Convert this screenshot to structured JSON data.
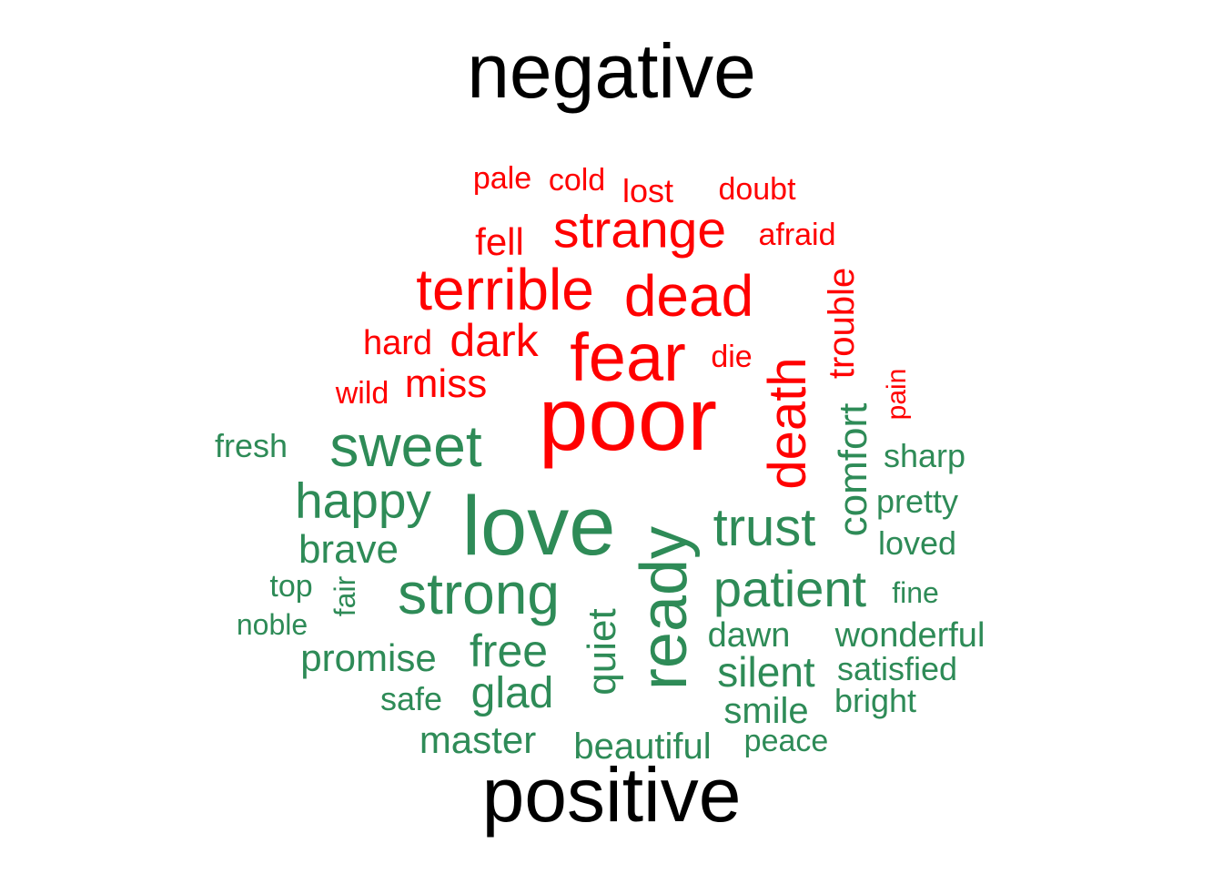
{
  "cloud": {
    "title_negative": "negative",
    "title_positive": "positive",
    "colors": {
      "negative": "#ff0000",
      "positive": "#2e8b57"
    },
    "negative_words": [
      {
        "text": "poor",
        "weight": 100
      },
      {
        "text": "fear",
        "weight": 70
      },
      {
        "text": "death",
        "weight": 62
      },
      {
        "text": "dead",
        "weight": 60
      },
      {
        "text": "terrible",
        "weight": 58
      },
      {
        "text": "strange",
        "weight": 52
      },
      {
        "text": "dark",
        "weight": 46
      },
      {
        "text": "miss",
        "weight": 40
      },
      {
        "text": "trouble",
        "weight": 38
      },
      {
        "text": "fell",
        "weight": 37
      },
      {
        "text": "hard",
        "weight": 35
      },
      {
        "text": "wild",
        "weight": 33
      },
      {
        "text": "afraid",
        "weight": 33
      },
      {
        "text": "die",
        "weight": 33
      },
      {
        "text": "lost",
        "weight": 33
      },
      {
        "text": "pale",
        "weight": 32
      },
      {
        "text": "cold",
        "weight": 32
      },
      {
        "text": "doubt",
        "weight": 32
      },
      {
        "text": "pain",
        "weight": 30
      }
    ],
    "positive_words": [
      {
        "text": "love",
        "weight": 95
      },
      {
        "text": "ready",
        "weight": 75
      },
      {
        "text": "sweet",
        "weight": 68
      },
      {
        "text": "strong",
        "weight": 66
      },
      {
        "text": "trust",
        "weight": 60
      },
      {
        "text": "patient",
        "weight": 58
      },
      {
        "text": "happy",
        "weight": 55
      },
      {
        "text": "free",
        "weight": 48
      },
      {
        "text": "comfort",
        "weight": 45
      },
      {
        "text": "glad",
        "weight": 45
      },
      {
        "text": "quiet",
        "weight": 45
      },
      {
        "text": "silent",
        "weight": 44
      },
      {
        "text": "brave",
        "weight": 42
      },
      {
        "text": "promise",
        "weight": 42
      },
      {
        "text": "master",
        "weight": 40
      },
      {
        "text": "beautiful",
        "weight": 39
      },
      {
        "text": "dawn",
        "weight": 38
      },
      {
        "text": "smile",
        "weight": 38
      },
      {
        "text": "wonderful",
        "weight": 38
      },
      {
        "text": "sharp",
        "weight": 36
      },
      {
        "text": "pretty",
        "weight": 36
      },
      {
        "text": "loved",
        "weight": 36
      },
      {
        "text": "fresh",
        "weight": 35
      },
      {
        "text": "satisfied",
        "weight": 35
      },
      {
        "text": "safe",
        "weight": 35
      },
      {
        "text": "bright",
        "weight": 35
      },
      {
        "text": "peace",
        "weight": 34
      },
      {
        "text": "top",
        "weight": 33
      },
      {
        "text": "fair",
        "weight": 33
      },
      {
        "text": "noble",
        "weight": 33
      },
      {
        "text": "fine",
        "weight": 33
      }
    ]
  }
}
